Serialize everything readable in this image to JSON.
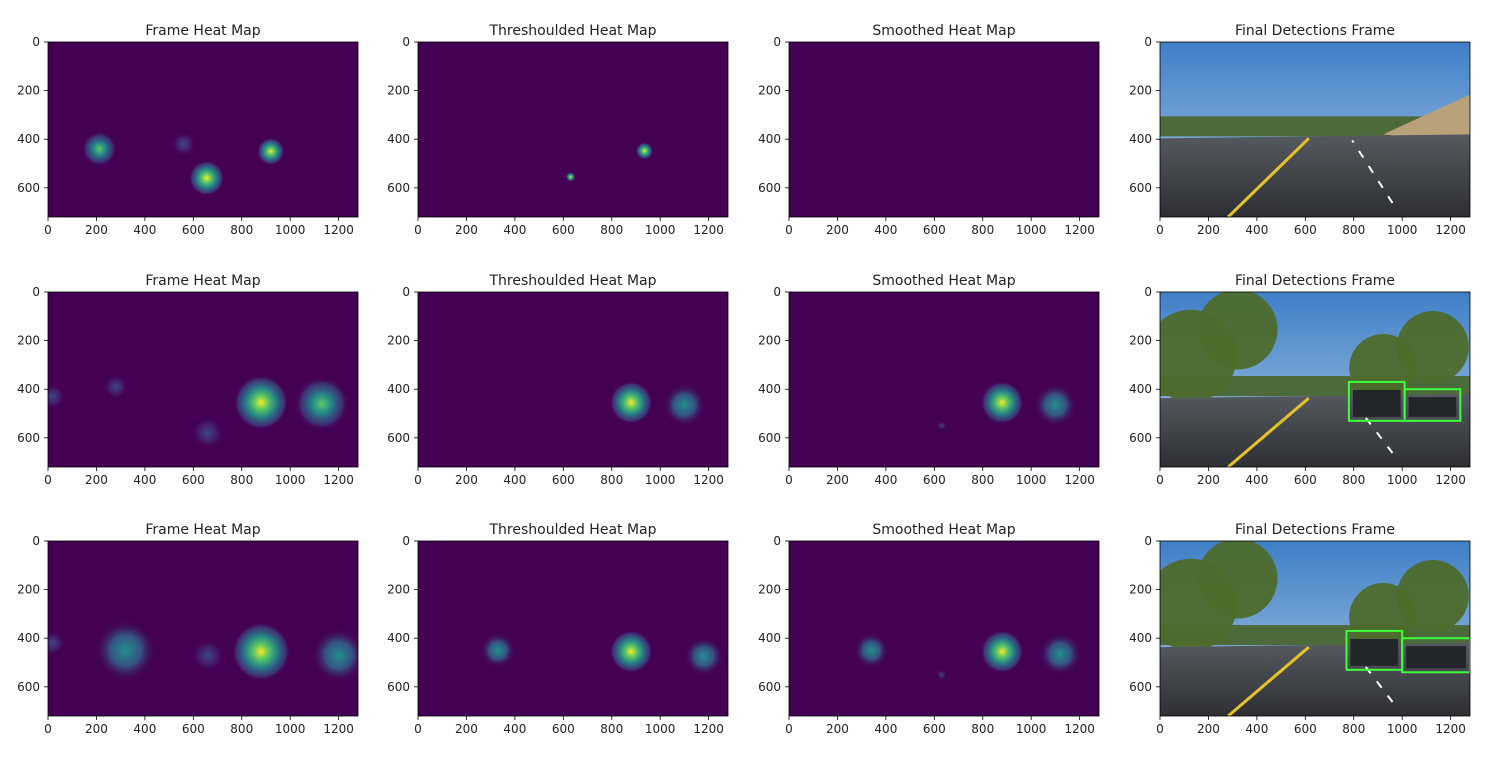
{
  "figure": {
    "rows": 3,
    "cols": 4,
    "panel_titles": [
      "Frame Heat Map",
      "Thresholded Heat Map",
      "Smoothed Heat Map",
      "Final Detections Frame"
    ],
    "panel_titles_as_printed": [
      "Frame Heat Map",
      "Threshoulded Heat Map",
      "Smoothed Heat Map",
      "Final Detections Frame"
    ]
  },
  "chart_data": [
    {
      "type": "heatmap",
      "title": "Frame Heat Map",
      "row": 1,
      "col": 1,
      "xlim": [
        0,
        1280
      ],
      "ylim": [
        720,
        0
      ],
      "xticks": [
        0,
        200,
        400,
        600,
        800,
        1000,
        1200
      ],
      "yticks": [
        0,
        200,
        400,
        600
      ],
      "background": "#440154",
      "blobs": [
        {
          "x": 212,
          "y": 440,
          "r": 45,
          "peak": 0.8
        },
        {
          "x": 655,
          "y": 560,
          "r": 45,
          "peak": 1.0
        },
        {
          "x": 920,
          "y": 450,
          "r": 35,
          "peak": 0.95
        },
        {
          "x": 560,
          "y": 420,
          "r": 30,
          "peak": 0.3
        }
      ]
    },
    {
      "type": "heatmap",
      "title": "Threshoulded Heat Map",
      "row": 1,
      "col": 2,
      "xlim": [
        0,
        1280
      ],
      "ylim": [
        720,
        0
      ],
      "xticks": [
        0,
        200,
        400,
        600,
        800,
        1000,
        1200
      ],
      "yticks": [
        0,
        200,
        400,
        600
      ],
      "background": "#440154",
      "blobs": [
        {
          "x": 630,
          "y": 555,
          "r": 12,
          "peak": 1.0
        },
        {
          "x": 935,
          "y": 448,
          "r": 22,
          "peak": 1.0
        }
      ]
    },
    {
      "type": "heatmap",
      "title": "Smoothed Heat Map",
      "row": 1,
      "col": 3,
      "xlim": [
        0,
        1280
      ],
      "ylim": [
        720,
        0
      ],
      "xticks": [
        0,
        200,
        400,
        600,
        800,
        1000,
        1200
      ],
      "yticks": [
        0,
        200,
        400,
        600
      ],
      "background": "#440154",
      "blobs": []
    },
    {
      "type": "image",
      "title": "Final Detections Frame",
      "row": 1,
      "col": 4,
      "xlim": [
        0,
        1280
      ],
      "ylim": [
        720,
        0
      ],
      "xticks": [
        0,
        200,
        400,
        600,
        800,
        1000,
        1200
      ],
      "yticks": [
        0,
        200,
        400,
        600
      ],
      "detections": []
    },
    {
      "type": "heatmap",
      "title": "Frame Heat Map",
      "row": 2,
      "col": 1,
      "xlim": [
        0,
        1280
      ],
      "ylim": [
        720,
        0
      ],
      "xticks": [
        0,
        200,
        400,
        600,
        800,
        1000,
        1200
      ],
      "yticks": [
        0,
        200,
        400,
        600
      ],
      "background": "#440154",
      "blobs": [
        {
          "x": 880,
          "y": 455,
          "r": 70,
          "peak": 1.0
        },
        {
          "x": 1130,
          "y": 460,
          "r": 70,
          "peak": 0.6
        },
        {
          "x": 280,
          "y": 390,
          "r": 30,
          "peak": 0.2
        },
        {
          "x": 20,
          "y": 430,
          "r": 30,
          "peak": 0.2
        },
        {
          "x": 660,
          "y": 580,
          "r": 40,
          "peak": 0.2
        }
      ]
    },
    {
      "type": "heatmap",
      "title": "Threshoulded Heat Map",
      "row": 2,
      "col": 2,
      "xlim": [
        0,
        1280
      ],
      "ylim": [
        720,
        0
      ],
      "xticks": [
        0,
        200,
        400,
        600,
        800,
        1000,
        1200
      ],
      "yticks": [
        0,
        200,
        400,
        600
      ],
      "background": "#440154",
      "blobs": [
        {
          "x": 880,
          "y": 455,
          "r": 55,
          "peak": 1.0
        },
        {
          "x": 1100,
          "y": 465,
          "r": 55,
          "peak": 0.4
        }
      ]
    },
    {
      "type": "heatmap",
      "title": "Smoothed Heat Map",
      "row": 2,
      "col": 3,
      "xlim": [
        0,
        1280
      ],
      "ylim": [
        720,
        0
      ],
      "xticks": [
        0,
        200,
        400,
        600,
        800,
        1000,
        1200
      ],
      "yticks": [
        0,
        200,
        400,
        600
      ],
      "background": "#440154",
      "blobs": [
        {
          "x": 880,
          "y": 455,
          "r": 55,
          "peak": 1.0
        },
        {
          "x": 1100,
          "y": 465,
          "r": 55,
          "peak": 0.4
        },
        {
          "x": 630,
          "y": 550,
          "r": 12,
          "peak": 0.3
        }
      ]
    },
    {
      "type": "image",
      "title": "Final Detections Frame",
      "row": 2,
      "col": 4,
      "xlim": [
        0,
        1280
      ],
      "ylim": [
        720,
        0
      ],
      "xticks": [
        0,
        200,
        400,
        600,
        800,
        1000,
        1200
      ],
      "yticks": [
        0,
        200,
        400,
        600
      ],
      "detections": [
        {
          "x0": 780,
          "y0": 370,
          "x1": 1010,
          "y1": 530
        },
        {
          "x0": 1010,
          "y0": 400,
          "x1": 1240,
          "y1": 530
        }
      ]
    },
    {
      "type": "heatmap",
      "title": "Frame Heat Map",
      "row": 3,
      "col": 1,
      "xlim": [
        0,
        1280
      ],
      "ylim": [
        720,
        0
      ],
      "xticks": [
        0,
        200,
        400,
        600,
        800,
        1000,
        1200
      ],
      "yticks": [
        0,
        200,
        400,
        600
      ],
      "background": "#440154",
      "blobs": [
        {
          "x": 320,
          "y": 450,
          "r": 80,
          "peak": 0.5
        },
        {
          "x": 880,
          "y": 455,
          "r": 75,
          "peak": 1.0
        },
        {
          "x": 1200,
          "y": 470,
          "r": 70,
          "peak": 0.5
        },
        {
          "x": 20,
          "y": 420,
          "r": 30,
          "peak": 0.2
        },
        {
          "x": 660,
          "y": 470,
          "r": 40,
          "peak": 0.2
        }
      ]
    },
    {
      "type": "heatmap",
      "title": "Threshoulded Heat Map",
      "row": 3,
      "col": 2,
      "xlim": [
        0,
        1280
      ],
      "ylim": [
        720,
        0
      ],
      "xticks": [
        0,
        200,
        400,
        600,
        800,
        1000,
        1200
      ],
      "yticks": [
        0,
        200,
        400,
        600
      ],
      "background": "#440154",
      "blobs": [
        {
          "x": 330,
          "y": 450,
          "r": 45,
          "peak": 0.5
        },
        {
          "x": 880,
          "y": 455,
          "r": 55,
          "peak": 1.0
        },
        {
          "x": 1180,
          "y": 475,
          "r": 50,
          "peak": 0.4
        }
      ]
    },
    {
      "type": "heatmap",
      "title": "Smoothed Heat Map",
      "row": 3,
      "col": 3,
      "xlim": [
        0,
        1280
      ],
      "ylim": [
        720,
        0
      ],
      "xticks": [
        0,
        200,
        400,
        600,
        800,
        1000,
        1200
      ],
      "yticks": [
        0,
        200,
        400,
        600
      ],
      "background": "#440154",
      "blobs": [
        {
          "x": 340,
          "y": 450,
          "r": 45,
          "peak": 0.5
        },
        {
          "x": 880,
          "y": 455,
          "r": 55,
          "peak": 1.0
        },
        {
          "x": 1120,
          "y": 465,
          "r": 55,
          "peak": 0.4
        },
        {
          "x": 630,
          "y": 550,
          "r": 12,
          "peak": 0.3
        }
      ]
    },
    {
      "type": "image",
      "title": "Final Detections Frame",
      "row": 3,
      "col": 4,
      "xlim": [
        0,
        1280
      ],
      "ylim": [
        720,
        0
      ],
      "xticks": [
        0,
        200,
        400,
        600,
        800,
        1000,
        1200
      ],
      "yticks": [
        0,
        200,
        400,
        600
      ],
      "detections": [
        {
          "x0": 770,
          "y0": 370,
          "x1": 1000,
          "y1": 530
        },
        {
          "x0": 1000,
          "y0": 400,
          "x1": 1280,
          "y1": 540
        }
      ]
    }
  ],
  "colors": {
    "viridis_low": "#440154",
    "viridis_mid": "#21918c",
    "viridis_high": "#fde725",
    "detection_box": "#3cff3c",
    "axis": "#000000"
  }
}
